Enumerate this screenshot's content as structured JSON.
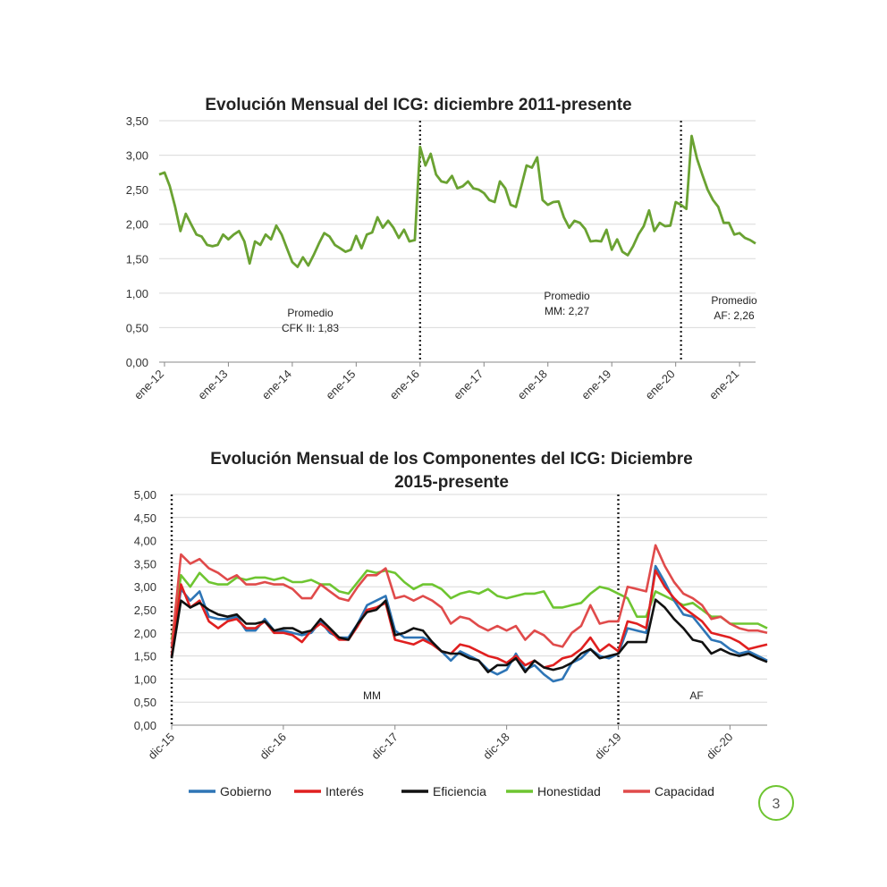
{
  "chart_data": [
    {
      "type": "line",
      "title": "Evolución Mensual del ICG: diciembre 2011-presente",
      "ylim": [
        0,
        3.5
      ],
      "yticks": [
        "0,00",
        "0,50",
        "1,00",
        "1,50",
        "2,00",
        "2,50",
        "3,00",
        "3,50"
      ],
      "xtick_labels": [
        "ene-12",
        "ene-13",
        "ene-14",
        "ene-15",
        "ene-16",
        "ene-17",
        "ene-18",
        "ene-19",
        "ene-20",
        "ene-21"
      ],
      "series": [
        {
          "name": "ICG",
          "color": "#6aa232",
          "values": [
            2.72,
            2.75,
            2.55,
            2.25,
            1.9,
            2.15,
            2.0,
            1.85,
            1.82,
            1.7,
            1.68,
            1.7,
            1.85,
            1.78,
            1.85,
            1.9,
            1.75,
            1.43,
            1.75,
            1.7,
            1.85,
            1.78,
            1.98,
            1.85,
            1.65,
            1.45,
            1.38,
            1.52,
            1.4,
            1.55,
            1.72,
            1.87,
            1.82,
            1.7,
            1.65,
            1.6,
            1.63,
            1.83,
            1.65,
            1.85,
            1.88,
            2.1,
            1.95,
            2.05,
            1.95,
            1.8,
            1.92,
            1.75,
            1.77,
            3.12,
            2.85,
            3.02,
            2.72,
            2.62,
            2.6,
            2.7,
            2.52,
            2.55,
            2.62,
            2.52,
            2.5,
            2.45,
            2.35,
            2.32,
            2.62,
            2.52,
            2.28,
            2.25,
            2.55,
            2.85,
            2.82,
            2.97,
            2.35,
            2.28,
            2.32,
            2.33,
            2.1,
            1.95,
            2.05,
            2.02,
            1.93,
            1.75,
            1.76,
            1.75,
            1.92,
            1.63,
            1.78,
            1.6,
            1.55,
            1.68,
            1.85,
            1.97,
            2.2,
            1.9,
            2.02,
            1.97,
            1.98,
            2.32,
            2.28,
            2.22,
            3.28,
            2.95,
            2.72,
            2.5,
            2.35,
            2.25,
            2.02,
            2.02,
            1.85,
            1.87,
            1.8,
            1.77,
            1.72
          ]
        }
      ],
      "vlines": [
        49,
        98
      ],
      "annotations": [
        {
          "line1": "Promedio",
          "line2": "CFK II: 1,83"
        },
        {
          "line1": "Promedio",
          "line2": "MM: 2,27"
        },
        {
          "line1": "Promedio",
          "line2": "AF: 2,26"
        }
      ]
    },
    {
      "type": "line",
      "title_line1": "Evolución Mensual de los Componentes del ICG: Diciembre",
      "title_line2": "2015-presente",
      "ylim": [
        0,
        5
      ],
      "yticks": [
        "0,00",
        "0,50",
        "1,00",
        "1,50",
        "2,00",
        "2,50",
        "3,00",
        "3,50",
        "4,00",
        "4,50",
        "5,00"
      ],
      "xtick_labels": [
        "dic-15",
        "dic-16",
        "dic-17",
        "dic-18",
        "dic-19",
        "dic-20"
      ],
      "vlines": [
        0,
        48
      ],
      "annotations": [
        "MM",
        "AF"
      ],
      "series": [
        {
          "name": "Gobierno",
          "color": "#2e75b6",
          "values": [
            1.5,
            2.95,
            2.7,
            2.9,
            2.35,
            2.3,
            2.3,
            2.35,
            2.05,
            2.05,
            2.3,
            2.05,
            2.05,
            2.0,
            1.95,
            2.0,
            2.25,
            2.0,
            1.9,
            1.9,
            2.2,
            2.6,
            2.7,
            2.8,
            2.05,
            1.9,
            1.9,
            1.9,
            1.8,
            1.6,
            1.4,
            1.6,
            1.5,
            1.4,
            1.2,
            1.1,
            1.2,
            1.55,
            1.2,
            1.3,
            1.1,
            0.95,
            1.0,
            1.35,
            1.45,
            1.65,
            1.5,
            1.45,
            1.55,
            2.1,
            2.05,
            2.0,
            3.45,
            3.1,
            2.7,
            2.4,
            2.35,
            2.1,
            1.85,
            1.8,
            1.65,
            1.55,
            1.6,
            1.5,
            1.4
          ]
        },
        {
          "name": "Interés",
          "color": "#e02020",
          "values": [
            1.5,
            3.05,
            2.55,
            2.7,
            2.25,
            2.1,
            2.25,
            2.3,
            2.1,
            2.1,
            2.25,
            2.0,
            2.0,
            1.95,
            1.8,
            2.05,
            2.2,
            2.05,
            1.85,
            1.85,
            2.15,
            2.5,
            2.55,
            2.65,
            1.85,
            1.8,
            1.75,
            1.85,
            1.75,
            1.6,
            1.55,
            1.75,
            1.7,
            1.6,
            1.5,
            1.45,
            1.35,
            1.5,
            1.3,
            1.4,
            1.25,
            1.3,
            1.45,
            1.5,
            1.65,
            1.9,
            1.6,
            1.75,
            1.6,
            2.25,
            2.2,
            2.1,
            3.35,
            3.0,
            2.75,
            2.55,
            2.4,
            2.25,
            2.0,
            1.95,
            1.9,
            1.8,
            1.65,
            1.7,
            1.75
          ]
        },
        {
          "name": "Eficiencia",
          "color": "#111111",
          "values": [
            1.45,
            2.7,
            2.55,
            2.65,
            2.5,
            2.4,
            2.35,
            2.4,
            2.2,
            2.2,
            2.25,
            2.05,
            2.1,
            2.1,
            2.0,
            2.05,
            2.3,
            2.1,
            1.9,
            1.85,
            2.2,
            2.45,
            2.5,
            2.7,
            1.95,
            2.0,
            2.1,
            2.05,
            1.8,
            1.6,
            1.55,
            1.55,
            1.45,
            1.4,
            1.15,
            1.3,
            1.3,
            1.45,
            1.15,
            1.4,
            1.25,
            1.2,
            1.25,
            1.35,
            1.55,
            1.65,
            1.45,
            1.5,
            1.55,
            1.8,
            1.8,
            1.8,
            2.72,
            2.55,
            2.3,
            2.1,
            1.85,
            1.8,
            1.55,
            1.65,
            1.55,
            1.5,
            1.55,
            1.45,
            1.37
          ]
        },
        {
          "name": "Honestidad",
          "color": "#6ec531",
          "values": [
            1.85,
            3.25,
            3.0,
            3.3,
            3.1,
            3.05,
            3.05,
            3.2,
            3.15,
            3.2,
            3.2,
            3.15,
            3.2,
            3.1,
            3.1,
            3.15,
            3.05,
            3.05,
            2.9,
            2.85,
            3.1,
            3.35,
            3.3,
            3.35,
            3.3,
            3.1,
            2.95,
            3.05,
            3.05,
            2.95,
            2.75,
            2.85,
            2.9,
            2.85,
            2.95,
            2.8,
            2.75,
            2.8,
            2.85,
            2.85,
            2.9,
            2.55,
            2.55,
            2.6,
            2.65,
            2.85,
            3.0,
            2.95,
            2.85,
            2.75,
            2.35,
            2.35,
            2.9,
            2.8,
            2.7,
            2.6,
            2.65,
            2.5,
            2.35,
            2.35,
            2.2,
            2.2,
            2.2,
            2.2,
            2.1
          ]
        },
        {
          "name": "Capacidad",
          "color": "#e04b4b",
          "values": [
            1.7,
            3.7,
            3.5,
            3.6,
            3.4,
            3.3,
            3.15,
            3.25,
            3.05,
            3.05,
            3.1,
            3.05,
            3.05,
            2.95,
            2.75,
            2.75,
            3.05,
            2.9,
            2.75,
            2.7,
            3.0,
            3.25,
            3.25,
            3.4,
            2.75,
            2.8,
            2.7,
            2.8,
            2.7,
            2.55,
            2.2,
            2.35,
            2.3,
            2.15,
            2.05,
            2.15,
            2.05,
            2.15,
            1.85,
            2.05,
            1.95,
            1.75,
            1.7,
            2.0,
            2.15,
            2.6,
            2.2,
            2.25,
            2.25,
            3.0,
            2.95,
            2.9,
            3.9,
            3.45,
            3.1,
            2.85,
            2.75,
            2.6,
            2.3,
            2.35,
            2.2,
            2.1,
            2.05,
            2.05,
            2.0
          ]
        }
      ]
    }
  ],
  "page_number": "3",
  "accent": "#6ec531"
}
